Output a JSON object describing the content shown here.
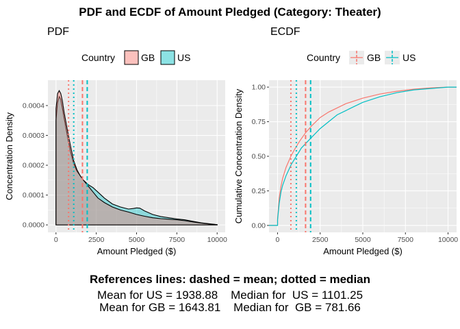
{
  "title": "PDF and ECDF of Amount Pledged (Category: Theater)",
  "colors": {
    "GB": "#F8766D",
    "US": "#00BFC4",
    "panel_bg": "#EBEBEB",
    "grid": "#FFFFFF"
  },
  "chart_data": [
    {
      "type": "area",
      "panel_title": "PDF",
      "xlabel": "Amount Pledged ($)",
      "ylabel": "Concentration Density",
      "xlim": [
        -500,
        10500
      ],
      "ylim": [
        -2.5e-05,
        0.000485
      ],
      "xticks": [
        0,
        2500,
        5000,
        7500,
        10000
      ],
      "yticks": [
        0,
        0.0001,
        0.0002,
        0.0003,
        0.0004
      ],
      "ytick_labels": [
        "0.0000",
        "0.0001",
        "0.0002",
        "0.0003",
        "0.0004"
      ],
      "legend": {
        "title": "Country",
        "entries": [
          "GB",
          "US"
        ],
        "position": "top"
      },
      "series": [
        {
          "name": "GB",
          "x": [
            0,
            100,
            200,
            300,
            400,
            500,
            700,
            900,
            1100,
            1300,
            1500,
            1700,
            2000,
            2300,
            2600,
            3000,
            3500,
            4000,
            4500,
            5000,
            5500,
            6000,
            6500,
            7000,
            7500,
            8000,
            8500,
            9000,
            9500,
            10000
          ],
          "y": [
            0.00039,
            0.00044,
            0.00045,
            0.00044,
            0.000415,
            0.00038,
            0.00032,
            0.000265,
            0.000215,
            0.000185,
            0.000165,
            0.00015,
            0.00013,
            0.00011,
            9e-05,
            7.5e-05,
            6e-05,
            5e-05,
            4.3e-05,
            3.5e-05,
            2.9e-05,
            2.4e-05,
            2.1e-05,
            1.9e-05,
            1.7e-05,
            1.4e-05,
            1e-05,
            6e-06,
            3e-06,
            1e-06
          ]
        },
        {
          "name": "US",
          "x": [
            0,
            100,
            200,
            300,
            400,
            500,
            700,
            900,
            1100,
            1300,
            1500,
            1700,
            2000,
            2300,
            2600,
            3000,
            3500,
            4000,
            4500,
            4800,
            5000,
            5200,
            5500,
            6000,
            6500,
            7000,
            7500,
            8000,
            8500,
            9000,
            9500,
            10000
          ],
          "y": [
            0.00035,
            0.00041,
            0.00043,
            0.00042,
            0.00039,
            0.00036,
            0.0003,
            0.000245,
            0.000205,
            0.00018,
            0.000165,
            0.00015,
            0.000135,
            0.000125,
            0.00011,
            9e-05,
            7e-05,
            6e-05,
            5.3e-05,
            5.5e-05,
            5.7e-05,
            5.6e-05,
            4.7e-05,
            3.5e-05,
            2.8e-05,
            2.4e-05,
            2e-05,
            1.7e-05,
            1.2e-05,
            7e-06,
            4e-06,
            1e-06
          ]
        }
      ],
      "reference_lines": [
        {
          "country": "US",
          "stat": "mean",
          "x": 1938.88,
          "style": "dashed"
        },
        {
          "country": "GB",
          "stat": "mean",
          "x": 1643.81,
          "style": "dashed"
        },
        {
          "country": "US",
          "stat": "median",
          "x": 1101.25,
          "style": "dotted"
        },
        {
          "country": "GB",
          "stat": "median",
          "x": 781.66,
          "style": "dotted"
        }
      ]
    },
    {
      "type": "line",
      "panel_title": "ECDF",
      "xlabel": "Amount Pledged ($)",
      "ylabel": "Cumulative Concentration Density",
      "xlim": [
        -500,
        10500
      ],
      "ylim": [
        -0.05,
        1.05
      ],
      "xticks": [
        0,
        2500,
        5000,
        7500,
        10000
      ],
      "yticks": [
        0,
        0.25,
        0.5,
        0.75,
        1
      ],
      "ytick_labels": [
        "0.00",
        "0.25",
        "0.50",
        "0.75",
        "1.00"
      ],
      "legend": {
        "title": "Country",
        "entries": [
          "GB",
          "US"
        ],
        "position": "top"
      },
      "series": [
        {
          "name": "GB",
          "x": [
            -500,
            0,
            1,
            100,
            200,
            300,
            500,
            781.66,
            1000,
            1300,
            1643.81,
            2000,
            2500,
            3000,
            3500,
            4000,
            5000,
            6000,
            7000,
            8000,
            9000,
            10000,
            10500
          ],
          "y": [
            0,
            0,
            0.05,
            0.2,
            0.28,
            0.34,
            0.42,
            0.5,
            0.55,
            0.61,
            0.67,
            0.72,
            0.78,
            0.82,
            0.85,
            0.88,
            0.92,
            0.95,
            0.97,
            0.985,
            0.995,
            1,
            1
          ]
        },
        {
          "name": "US",
          "x": [
            -500,
            0,
            1,
            100,
            200,
            300,
            500,
            800,
            1101.25,
            1400,
            1938.88,
            2500,
            3000,
            3500,
            4000,
            4500,
            5000,
            6000,
            7000,
            8000,
            9000,
            10000,
            10500
          ],
          "y": [
            0,
            0,
            0.04,
            0.16,
            0.24,
            0.29,
            0.36,
            0.44,
            0.5,
            0.56,
            0.63,
            0.7,
            0.75,
            0.8,
            0.83,
            0.86,
            0.89,
            0.93,
            0.96,
            0.98,
            0.99,
            1,
            1
          ]
        }
      ],
      "reference_lines": [
        {
          "country": "US",
          "stat": "mean",
          "x": 1938.88,
          "style": "dashed"
        },
        {
          "country": "GB",
          "stat": "mean",
          "x": 1643.81,
          "style": "dashed"
        },
        {
          "country": "US",
          "stat": "median",
          "x": 1101.25,
          "style": "dotted"
        },
        {
          "country": "GB",
          "stat": "median",
          "x": 781.66,
          "style": "dotted"
        }
      ]
    }
  ],
  "notes": {
    "heading": "References lines: dashed = mean; dotted = median",
    "line_us": "Mean for US = 1938.88    Median for  US = 1101.25",
    "line_gb": "Mean for GB = 1643.81    Median for  GB = 781.66"
  }
}
